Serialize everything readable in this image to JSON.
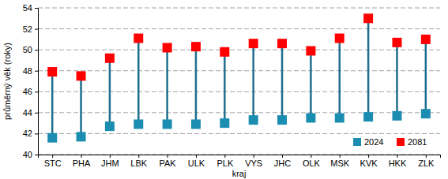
{
  "chart_data": {
    "type": "dumbbell",
    "x_label": "kraj",
    "y_label": "průměrný věk (roky)",
    "categories": [
      "STC",
      "PHA",
      "JHM",
      "LBK",
      "PAK",
      "ULK",
      "PLK",
      "VYS",
      "JHC",
      "OLK",
      "MSK",
      "KVK",
      "HKK",
      "ZLK"
    ],
    "series": [
      {
        "name": "2024",
        "color": "#1b8db0",
        "marker": "square",
        "values": [
          41.6,
          41.7,
          42.7,
          42.9,
          42.9,
          42.9,
          43.0,
          43.3,
          43.3,
          43.5,
          43.5,
          43.6,
          43.7,
          43.9
        ]
      },
      {
        "name": "2081",
        "color": "#ff0000",
        "marker": "square",
        "values": [
          47.9,
          47.5,
          49.2,
          51.1,
          50.2,
          50.3,
          49.8,
          50.6,
          50.6,
          49.9,
          51.1,
          53.0,
          50.7,
          51.0
        ]
      }
    ],
    "ylim": [
      40,
      54
    ],
    "yticks": [
      40,
      42,
      44,
      46,
      48,
      50,
      52,
      54
    ],
    "grid": true,
    "legend": "lower right"
  }
}
